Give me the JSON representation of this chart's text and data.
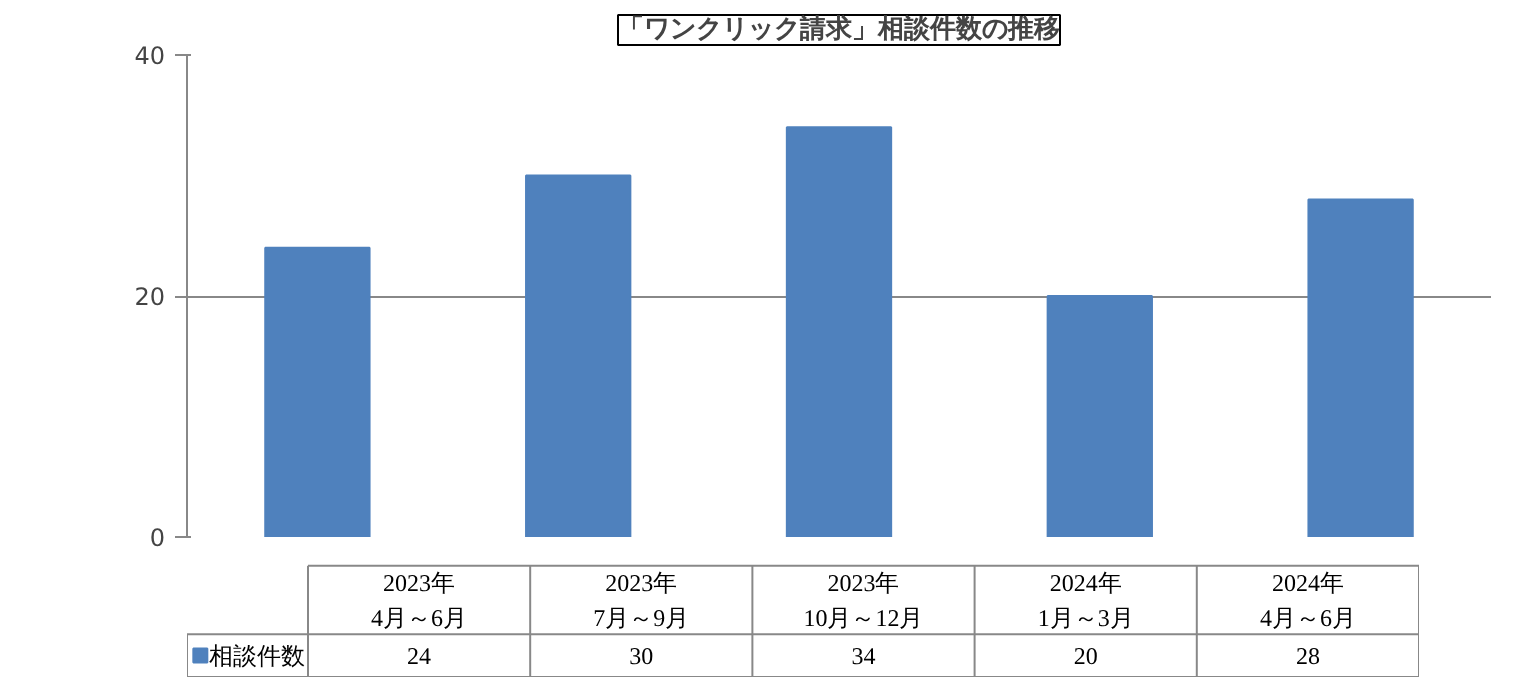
{
  "chart_data": {
    "type": "bar",
    "title": "「ワンクリック請求」相談件数の推移",
    "categories": [
      "2023年\n4月～6月",
      "2023年\n7月～9月",
      "2023年\n10月～12月",
      "2024年\n1月～3月",
      "2024年\n4月～6月"
    ],
    "series": [
      {
        "name": "相談件数",
        "color": "#4f81bd",
        "values": [
          24,
          30,
          34,
          20,
          28
        ]
      }
    ],
    "ylim": [
      0,
      40
    ],
    "yticks": [
      0,
      20,
      40
    ],
    "grid": "y",
    "legend": "bottom",
    "data_labels": true
  }
}
